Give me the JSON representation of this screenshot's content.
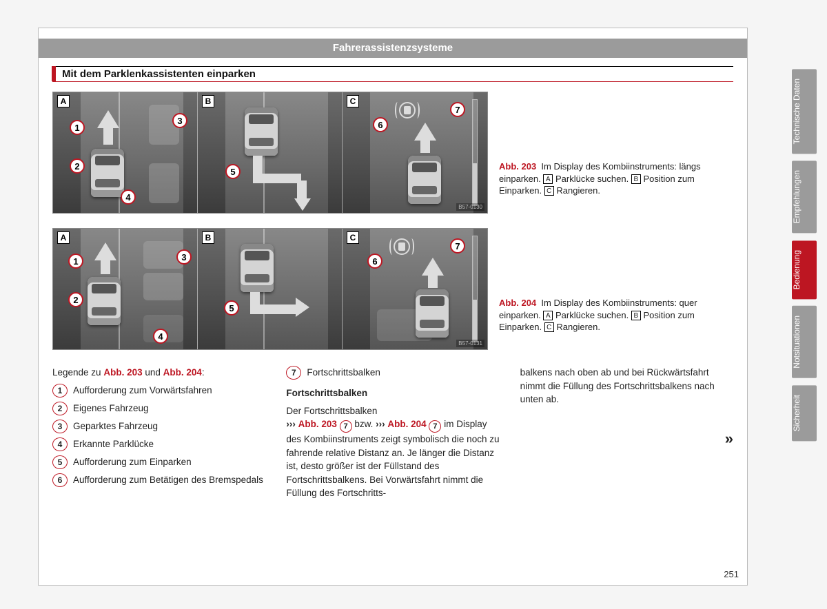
{
  "header": "Fahrerassistenzsysteme",
  "section_title": "Mit dem Parklenkassistenten einparken",
  "page_number": "251",
  "fig203": {
    "idcode": "B57-0130",
    "ab_label": "Abb. 203",
    "caption_main": "Im Display des Kombiinstruments: längs einparken.",
    "capA": "Parklücke suchen.",
    "capB": "Position zum Einparken.",
    "capC": "Rangieren.",
    "panelA": "A",
    "panelB": "B",
    "panelC": "C"
  },
  "fig204": {
    "idcode": "B57-0131",
    "ab_label": "Abb. 204",
    "caption_main": "Im Display des Kombiinstruments: quer einparken.",
    "capA": "Parklücke suchen.",
    "capB": "Position zum Einparken.",
    "capC": "Rangieren.",
    "panelA": "A",
    "panelB": "B",
    "panelC": "C"
  },
  "legend": {
    "intro_pre": "Legende zu ",
    "intro_ref1": "Abb. 203",
    "intro_mid": " und ",
    "intro_ref2": "Abb. 204",
    "intro_post": ":",
    "items": [
      {
        "n": "1",
        "t": "Aufforderung zum Vorwärtsfahren"
      },
      {
        "n": "2",
        "t": "Eigenes Fahrzeug"
      },
      {
        "n": "3",
        "t": "Geparktes Fahrzeug"
      },
      {
        "n": "4",
        "t": "Erkannte Parklücke"
      },
      {
        "n": "5",
        "t": "Aufforderung zum Einparken"
      },
      {
        "n": "6",
        "t": "Aufforderung zum Betätigen des Bremspedals"
      }
    ]
  },
  "col2": {
    "item7_n": "7",
    "item7_t": "Fortschrittsbalken",
    "subhead": "Fortschrittsbalken",
    "para_pre": "Der Fortschrittsbalken",
    "para_ref1": "Abb. 203",
    "para_bzw": " bzw. ",
    "para_ref2": "Abb. 204",
    "para_rest": " im Display des Kombiinstruments zeigt symbolisch die noch zu fahrende relative Distanz an. Je länger die Distanz ist, desto größer ist der Füllstand des Fortschrittsbalkens. Bei Vorwärtsfahrt nimmt die Füllung des Fortschritts-"
  },
  "col3": {
    "text": "balkens nach oben ab und bei Rückwärtsfahrt nimmt die Füllung des Fortschrittsbalkens nach unten ab.",
    "cont": "»"
  },
  "tabs": [
    {
      "label": "Technische Daten",
      "active": false
    },
    {
      "label": "Empfehlungen",
      "active": false
    },
    {
      "label": "Bedienung",
      "active": true
    },
    {
      "label": "Notsituationen",
      "active": false
    },
    {
      "label": "Sicherheit",
      "active": false
    }
  ],
  "callout_nums": {
    "n1": "1",
    "n2": "2",
    "n3": "3",
    "n4": "4",
    "n5": "5",
    "n6": "6",
    "n7": "7"
  },
  "letters": {
    "A": "A",
    "B": "B",
    "C": "C"
  },
  "colors": {
    "accent": "#bd1622",
    "band": "#9b9b9b"
  }
}
